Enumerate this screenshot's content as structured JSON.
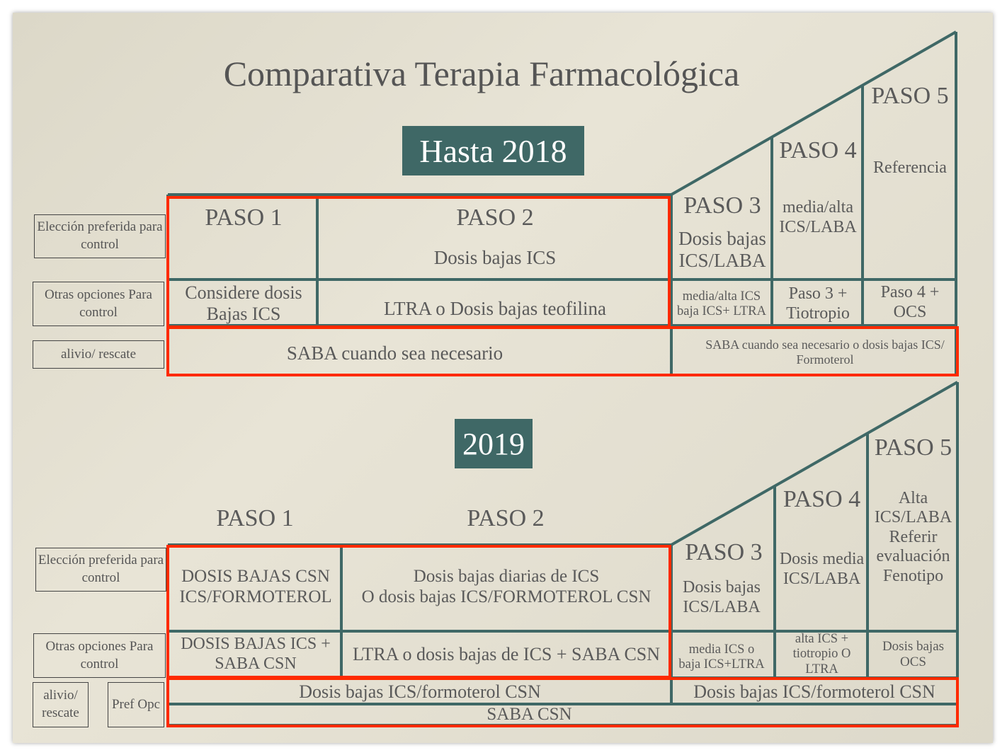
{
  "title": "Comparativa Terapia Farmacológica",
  "colors": {
    "teal": "#3f6866",
    "highlight": "#ff2a00",
    "background": "#e2dece"
  },
  "before": {
    "banner": "Hasta 2018",
    "labels": [
      "Elección preferida para control",
      "Otras opciones Para control",
      "alivio/ rescate"
    ],
    "steps": {
      "p1": "PASO 1",
      "p2": "PASO 2",
      "p3": "PASO 3",
      "p4": "PASO 4",
      "p5": "PASO 5"
    },
    "preferred": {
      "p2": "Dosis bajas ICS",
      "p3": "Dosis bajas ICS/LABA",
      "p4": "media/alta ICS/LABA",
      "p5": "Referencia"
    },
    "other": {
      "p1": "Considere dosis Bajas ICS",
      "p2": "LTRA o Dosis bajas teofilina",
      "p3a": "media/alta ICS",
      "p3b": "baja ICS+ LTRA",
      "p4": "Paso 3 + Tiotropio",
      "p5": "Paso 4 + OCS"
    },
    "reliever": {
      "left": "SABA cuando sea necesario",
      "right": "SABA cuando sea necesario o dosis bajas ICS/ Formoterol"
    }
  },
  "after": {
    "banner": "2019",
    "labels": [
      "Elección preferida para control",
      "Otras opciones Para control",
      "alivio/ rescate",
      "Pref Opc"
    ],
    "steps": {
      "p1": "PASO 1",
      "p2": "PASO 2",
      "p3": "PASO 3",
      "p4": "PASO 4",
      "p5": "PASO 5"
    },
    "preferred": {
      "p1": "DOSIS BAJAS CSN ICS/FORMOTEROL",
      "p2a": "Dosis bajas diarias de ICS",
      "p2b": "O dosis bajas ICS/FORMOTEROL CSN",
      "p3": "Dosis bajas ICS/LABA",
      "p4": "Dosis media ICS/LABA",
      "p5": "Alta ICS/LABA Referir evaluación Fenotipo"
    },
    "other": {
      "p1": "DOSIS BAJAS ICS + SABA CSN",
      "p2": "LTRA o dosis bajas de ICS + SABA CSN",
      "p3a": "media ICS o",
      "p3b": "baja ICS+LTRA",
      "p4": "alta ICS + tiotropio O LTRA",
      "p5": "Dosis bajas OCS"
    },
    "reliever": {
      "pref_left": "Dosis bajas ICS/formoterol CSN",
      "pref_right": "Dosis bajas ICS/formoterol CSN",
      "opc": "SABA CSN"
    }
  }
}
